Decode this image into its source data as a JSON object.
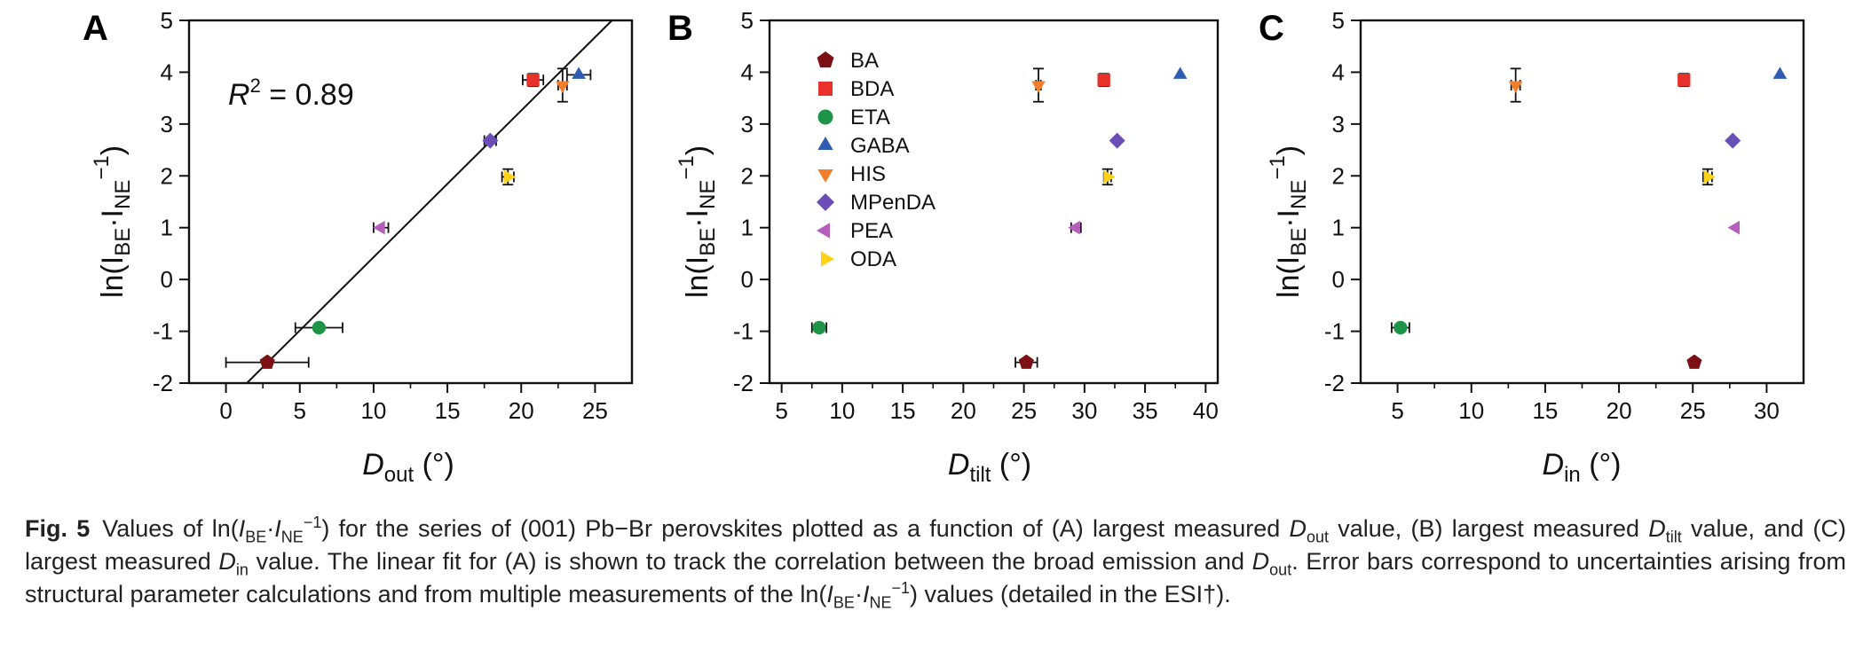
{
  "figure": {
    "panels": [
      "A",
      "B",
      "C"
    ],
    "ylabel": {
      "main": "ln(I",
      "sub1": "BE",
      "mid": "·I",
      "sub2": "NE",
      "sup": "−1",
      "end": ")"
    },
    "xlabels": [
      {
        "main": "D",
        "sub": "out",
        "unit": " (°)"
      },
      {
        "main": "D",
        "sub": "tilt",
        "unit": " (°)"
      },
      {
        "main": "D",
        "sub": "in",
        "unit": " (°)"
      }
    ],
    "r2": {
      "prefix": "R",
      "sup": "2",
      "value": " = 0.89"
    }
  },
  "legend": [
    {
      "name": "BA",
      "color": "#7b1114",
      "marker": "pentagon"
    },
    {
      "name": "BDA",
      "color": "#e8312a",
      "marker": "square"
    },
    {
      "name": "ETA",
      "color": "#1e9447",
      "marker": "circle"
    },
    {
      "name": "GABA",
      "color": "#2f5db3",
      "marker": "triangle-up"
    },
    {
      "name": "HIS",
      "color": "#f27d2a",
      "marker": "triangle-down"
    },
    {
      "name": "MPenDA",
      "color": "#6a4eb6",
      "marker": "diamond"
    },
    {
      "name": "PEA",
      "color": "#b65dbd",
      "marker": "triangle-left"
    },
    {
      "name": "ODA",
      "color": "#ffd21a",
      "marker": "triangle-right"
    }
  ],
  "chart_data": [
    {
      "type": "scatter",
      "panel": "A",
      "xlabel": "D_out (°)",
      "ylabel": "ln(I_BE·I_NE^−1)",
      "xlim": [
        -2.5,
        27.5
      ],
      "ylim": [
        -2,
        5
      ],
      "xticks": [
        0,
        5,
        10,
        15,
        20,
        25
      ],
      "yticks": [
        -2,
        -1,
        0,
        1,
        2,
        3,
        4,
        5
      ],
      "annotation": "R² = 0.89",
      "fit_line": {
        "slope": 0.283,
        "intercept": -2.4
      },
      "series": [
        {
          "name": "BA",
          "x": 2.8,
          "y": -1.6,
          "xerr": 2.8,
          "yerr": 0
        },
        {
          "name": "BDA",
          "x": 20.8,
          "y": 3.85,
          "xerr": 0.7,
          "yerr": 0.12
        },
        {
          "name": "ETA",
          "x": 6.3,
          "y": -0.93,
          "xerr": 1.6,
          "yerr": 0.06
        },
        {
          "name": "GABA",
          "x": 23.9,
          "y": 3.95,
          "xerr": 0.8,
          "yerr": 0
        },
        {
          "name": "HIS",
          "x": 22.8,
          "y": 3.75,
          "xerr": 0.3,
          "yerr": 0.32
        },
        {
          "name": "MPenDA",
          "x": 17.9,
          "y": 2.68,
          "xerr": 0.4,
          "yerr": 0
        },
        {
          "name": "PEA",
          "x": 10.5,
          "y": 1.0,
          "xerr": 0.5,
          "yerr": 0
        },
        {
          "name": "ODA",
          "x": 19.1,
          "y": 1.98,
          "xerr": 0.4,
          "yerr": 0.15
        }
      ]
    },
    {
      "type": "scatter",
      "panel": "B",
      "xlabel": "D_tilt (°)",
      "ylabel": "ln(I_BE·I_NE^−1)",
      "xlim": [
        4,
        41
      ],
      "ylim": [
        -2,
        5
      ],
      "xticks": [
        5,
        10,
        15,
        20,
        25,
        30,
        35,
        40
      ],
      "yticks": [
        -2,
        -1,
        0,
        1,
        2,
        3,
        4,
        5
      ],
      "series": [
        {
          "name": "BA",
          "x": 25.2,
          "y": -1.6,
          "xerr": 0.9,
          "yerr": 0
        },
        {
          "name": "BDA",
          "x": 31.6,
          "y": 3.85,
          "xerr": 0.3,
          "yerr": 0.12
        },
        {
          "name": "ETA",
          "x": 8.1,
          "y": -0.93,
          "xerr": 0.6,
          "yerr": 0.06
        },
        {
          "name": "GABA",
          "x": 37.9,
          "y": 3.95,
          "xerr": 0,
          "yerr": 0
        },
        {
          "name": "HIS",
          "x": 26.2,
          "y": 3.75,
          "xerr": 0.2,
          "yerr": 0.32
        },
        {
          "name": "MPenDA",
          "x": 32.7,
          "y": 2.68,
          "xerr": 0,
          "yerr": 0
        },
        {
          "name": "PEA",
          "x": 29.3,
          "y": 1.0,
          "xerr": 0.4,
          "yerr": 0
        },
        {
          "name": "ODA",
          "x": 31.9,
          "y": 1.98,
          "xerr": 0.3,
          "yerr": 0.15
        }
      ]
    },
    {
      "type": "scatter",
      "panel": "C",
      "xlabel": "D_in (°)",
      "ylabel": "ln(I_BE·I_NE^−1)",
      "xlim": [
        2.5,
        32.5
      ],
      "ylim": [
        -2,
        5
      ],
      "xticks": [
        5,
        10,
        15,
        20,
        25,
        30
      ],
      "yticks": [
        -2,
        -1,
        0,
        1,
        2,
        3,
        4,
        5
      ],
      "series": [
        {
          "name": "BA",
          "x": 25.1,
          "y": -1.6,
          "xerr": 0,
          "yerr": 0
        },
        {
          "name": "BDA",
          "x": 24.4,
          "y": 3.85,
          "xerr": 0.2,
          "yerr": 0.12
        },
        {
          "name": "ETA",
          "x": 5.2,
          "y": -0.93,
          "xerr": 0.6,
          "yerr": 0.06
        },
        {
          "name": "GABA",
          "x": 30.9,
          "y": 3.95,
          "xerr": 0,
          "yerr": 0
        },
        {
          "name": "HIS",
          "x": 13.0,
          "y": 3.75,
          "xerr": 0.3,
          "yerr": 0.32
        },
        {
          "name": "MPenDA",
          "x": 27.7,
          "y": 2.68,
          "xerr": 0,
          "yerr": 0
        },
        {
          "name": "PEA",
          "x": 27.9,
          "y": 1.0,
          "xerr": 0,
          "yerr": 0
        },
        {
          "name": "ODA",
          "x": 26.0,
          "y": 1.98,
          "xerr": 0.3,
          "yerr": 0.15
        }
      ]
    }
  ],
  "caption": {
    "label": "Fig. 5",
    "t1": "Values of ln(",
    "i1": "I",
    "s1": "BE",
    "t2": "·",
    "i2": "I",
    "s2": "NE",
    "p1": "−1",
    "t3": ") for the series of (001) Pb−Br perovskites plotted as a function of (A) largest measured ",
    "d1": "D",
    "ds1": "out",
    "t4": " value, (B) largest measured ",
    "d2": "D",
    "ds2": "tilt",
    "t5": " value, and (C) largest measured ",
    "d3": "D",
    "ds3": "in",
    "t6": " value. The linear fit for (A) is shown to track the correlation between the broad emission and ",
    "d4": "D",
    "ds4": "out",
    "t7": ". Error bars correspond to uncertainties arising from structural parameter calculations and from multiple measurements of the ln(",
    "i3": "I",
    "s3": "BE",
    "t8": "·",
    "i4": "I",
    "s4": "NE",
    "p2": "−1",
    "t9": ") values (detailed in the ESI†)."
  }
}
